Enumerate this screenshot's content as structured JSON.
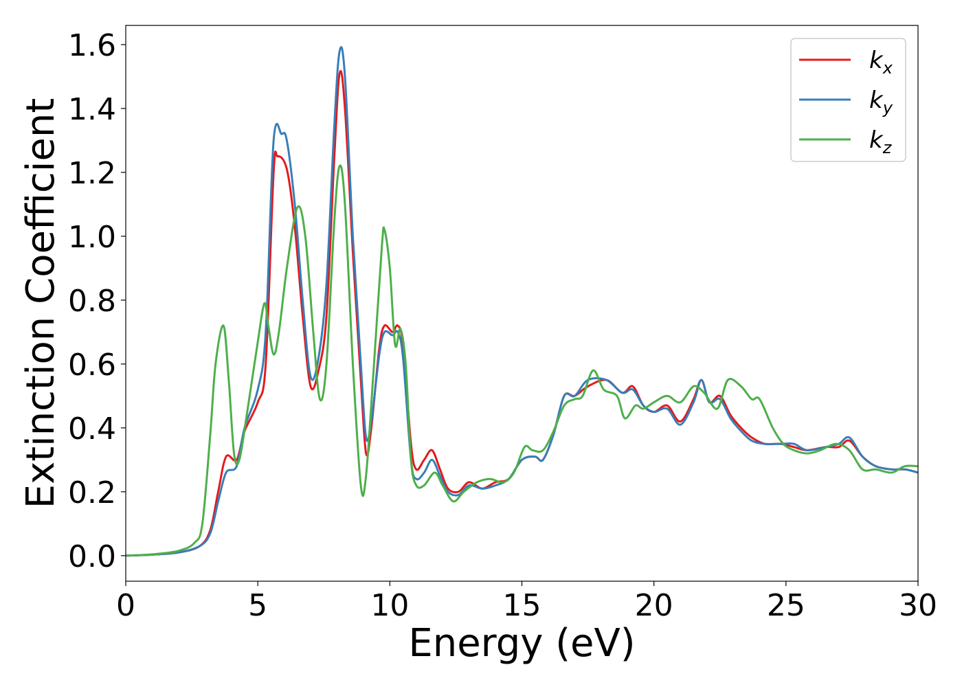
{
  "chart_data": {
    "type": "line",
    "xlabel": "Energy (eV)",
    "ylabel": "Extinction Coefficient",
    "xlim": [
      0,
      30
    ],
    "ylim": [
      -0.08,
      1.66
    ],
    "xticks": [
      "0",
      "5",
      "10",
      "15",
      "20",
      "25",
      "30"
    ],
    "yticks": [
      "0.0",
      "0.2",
      "0.4",
      "0.6",
      "0.8",
      "1.0",
      "1.2",
      "1.4",
      "1.6"
    ],
    "legend_position": "top-right",
    "grid": false,
    "series": [
      {
        "name": "k",
        "subscript": "x",
        "color": "#e41a1c",
        "points": [
          [
            0,
            0.0
          ],
          [
            1,
            0.003
          ],
          [
            2,
            0.01
          ],
          [
            2.8,
            0.03
          ],
          [
            3.2,
            0.08
          ],
          [
            3.5,
            0.2
          ],
          [
            3.8,
            0.31
          ],
          [
            4.2,
            0.3
          ],
          [
            4.5,
            0.39
          ],
          [
            5,
            0.48
          ],
          [
            5.3,
            0.6
          ],
          [
            5.6,
            1.2
          ],
          [
            5.75,
            1.25
          ],
          [
            6.1,
            1.21
          ],
          [
            6.4,
            1.03
          ],
          [
            6.7,
            0.75
          ],
          [
            7,
            0.53
          ],
          [
            7.3,
            0.58
          ],
          [
            7.6,
            0.75
          ],
          [
            7.9,
            1.25
          ],
          [
            8.1,
            1.51
          ],
          [
            8.3,
            1.4
          ],
          [
            8.6,
            0.95
          ],
          [
            8.9,
            0.55
          ],
          [
            9.1,
            0.32
          ],
          [
            9.3,
            0.4
          ],
          [
            9.6,
            0.65
          ],
          [
            9.8,
            0.72
          ],
          [
            10.1,
            0.7
          ],
          [
            10.3,
            0.72
          ],
          [
            10.5,
            0.66
          ],
          [
            10.8,
            0.35
          ],
          [
            11,
            0.27
          ],
          [
            11.3,
            0.3
          ],
          [
            11.6,
            0.33
          ],
          [
            11.9,
            0.27
          ],
          [
            12.2,
            0.21
          ],
          [
            12.6,
            0.2
          ],
          [
            13,
            0.23
          ],
          [
            13.5,
            0.21
          ],
          [
            14,
            0.23
          ],
          [
            14.5,
            0.24
          ],
          [
            15,
            0.3
          ],
          [
            15.5,
            0.31
          ],
          [
            15.8,
            0.3
          ],
          [
            16.2,
            0.38
          ],
          [
            16.6,
            0.5
          ],
          [
            17,
            0.5
          ],
          [
            17.5,
            0.53
          ],
          [
            18.2,
            0.55
          ],
          [
            18.8,
            0.51
          ],
          [
            19.2,
            0.53
          ],
          [
            19.6,
            0.47
          ],
          [
            20,
            0.45
          ],
          [
            20.5,
            0.47
          ],
          [
            21,
            0.42
          ],
          [
            21.5,
            0.49
          ],
          [
            21.8,
            0.55
          ],
          [
            22.1,
            0.48
          ],
          [
            22.5,
            0.5
          ],
          [
            22.9,
            0.44
          ],
          [
            23.3,
            0.4
          ],
          [
            23.7,
            0.37
          ],
          [
            24.2,
            0.35
          ],
          [
            24.8,
            0.35
          ],
          [
            25.3,
            0.34
          ],
          [
            25.8,
            0.33
          ],
          [
            26.5,
            0.34
          ],
          [
            27,
            0.34
          ],
          [
            27.4,
            0.36
          ],
          [
            27.9,
            0.31
          ],
          [
            28.4,
            0.28
          ],
          [
            29,
            0.27
          ],
          [
            29.5,
            0.27
          ],
          [
            30,
            0.26
          ]
        ]
      },
      {
        "name": "k",
        "subscript": "y",
        "color": "#377eb8",
        "points": [
          [
            0,
            0.0
          ],
          [
            1,
            0.003
          ],
          [
            2,
            0.01
          ],
          [
            2.8,
            0.03
          ],
          [
            3.2,
            0.07
          ],
          [
            3.5,
            0.17
          ],
          [
            3.8,
            0.26
          ],
          [
            4.2,
            0.28
          ],
          [
            4.5,
            0.4
          ],
          [
            5,
            0.52
          ],
          [
            5.3,
            0.7
          ],
          [
            5.6,
            1.3
          ],
          [
            5.9,
            1.32
          ],
          [
            6.1,
            1.3
          ],
          [
            6.4,
            1.1
          ],
          [
            6.7,
            0.8
          ],
          [
            7,
            0.56
          ],
          [
            7.3,
            0.62
          ],
          [
            7.6,
            0.85
          ],
          [
            7.9,
            1.35
          ],
          [
            8.1,
            1.58
          ],
          [
            8.3,
            1.5
          ],
          [
            8.6,
            1.0
          ],
          [
            8.9,
            0.6
          ],
          [
            9.1,
            0.37
          ],
          [
            9.3,
            0.42
          ],
          [
            9.6,
            0.63
          ],
          [
            9.8,
            0.7
          ],
          [
            10.1,
            0.69
          ],
          [
            10.3,
            0.7
          ],
          [
            10.5,
            0.62
          ],
          [
            10.8,
            0.3
          ],
          [
            11,
            0.24
          ],
          [
            11.3,
            0.26
          ],
          [
            11.6,
            0.3
          ],
          [
            11.9,
            0.25
          ],
          [
            12.2,
            0.2
          ],
          [
            12.6,
            0.19
          ],
          [
            13,
            0.22
          ],
          [
            13.5,
            0.21
          ],
          [
            14,
            0.22
          ],
          [
            14.5,
            0.24
          ],
          [
            15,
            0.3
          ],
          [
            15.5,
            0.31
          ],
          [
            15.8,
            0.3
          ],
          [
            16.2,
            0.38
          ],
          [
            16.6,
            0.5
          ],
          [
            17,
            0.5
          ],
          [
            17.5,
            0.55
          ],
          [
            18.2,
            0.55
          ],
          [
            18.8,
            0.51
          ],
          [
            19.2,
            0.52
          ],
          [
            19.6,
            0.47
          ],
          [
            20,
            0.45
          ],
          [
            20.5,
            0.46
          ],
          [
            21,
            0.41
          ],
          [
            21.5,
            0.48
          ],
          [
            21.8,
            0.55
          ],
          [
            22.1,
            0.48
          ],
          [
            22.5,
            0.49
          ],
          [
            22.9,
            0.43
          ],
          [
            23.3,
            0.39
          ],
          [
            23.7,
            0.36
          ],
          [
            24.2,
            0.35
          ],
          [
            24.8,
            0.35
          ],
          [
            25.3,
            0.35
          ],
          [
            25.8,
            0.33
          ],
          [
            26.5,
            0.34
          ],
          [
            27,
            0.35
          ],
          [
            27.4,
            0.37
          ],
          [
            27.9,
            0.31
          ],
          [
            28.4,
            0.28
          ],
          [
            29,
            0.27
          ],
          [
            29.5,
            0.27
          ],
          [
            30,
            0.26
          ]
        ]
      },
      {
        "name": "k",
        "subscript": "z",
        "color": "#4daf4a",
        "points": [
          [
            0,
            0.0
          ],
          [
            1,
            0.004
          ],
          [
            2,
            0.015
          ],
          [
            2.6,
            0.04
          ],
          [
            2.9,
            0.1
          ],
          [
            3.2,
            0.38
          ],
          [
            3.4,
            0.6
          ],
          [
            3.7,
            0.72
          ],
          [
            3.9,
            0.55
          ],
          [
            4.1,
            0.32
          ],
          [
            4.3,
            0.3
          ],
          [
            4.6,
            0.45
          ],
          [
            5,
            0.67
          ],
          [
            5.25,
            0.79
          ],
          [
            5.4,
            0.72
          ],
          [
            5.6,
            0.63
          ],
          [
            5.8,
            0.7
          ],
          [
            6.1,
            0.9
          ],
          [
            6.5,
            1.09
          ],
          [
            6.8,
            1.0
          ],
          [
            7.1,
            0.7
          ],
          [
            7.35,
            0.49
          ],
          [
            7.6,
            0.6
          ],
          [
            7.9,
            1.05
          ],
          [
            8.1,
            1.22
          ],
          [
            8.3,
            1.1
          ],
          [
            8.6,
            0.6
          ],
          [
            8.9,
            0.22
          ],
          [
            9.1,
            0.25
          ],
          [
            9.4,
            0.6
          ],
          [
            9.7,
            0.97
          ],
          [
            9.8,
            1.02
          ],
          [
            10.0,
            0.9
          ],
          [
            10.2,
            0.66
          ],
          [
            10.4,
            0.71
          ],
          [
            10.6,
            0.6
          ],
          [
            10.8,
            0.3
          ],
          [
            11,
            0.22
          ],
          [
            11.3,
            0.22
          ],
          [
            11.7,
            0.26
          ],
          [
            12,
            0.22
          ],
          [
            12.4,
            0.17
          ],
          [
            12.8,
            0.2
          ],
          [
            13.3,
            0.23
          ],
          [
            13.8,
            0.24
          ],
          [
            14.3,
            0.23
          ],
          [
            14.7,
            0.26
          ],
          [
            15.1,
            0.34
          ],
          [
            15.4,
            0.33
          ],
          [
            15.8,
            0.33
          ],
          [
            16.2,
            0.39
          ],
          [
            16.6,
            0.47
          ],
          [
            17,
            0.49
          ],
          [
            17.3,
            0.5
          ],
          [
            17.7,
            0.58
          ],
          [
            18.1,
            0.52
          ],
          [
            18.6,
            0.5
          ],
          [
            18.9,
            0.43
          ],
          [
            19.3,
            0.47
          ],
          [
            19.6,
            0.46
          ],
          [
            20,
            0.48
          ],
          [
            20.5,
            0.5
          ],
          [
            21,
            0.48
          ],
          [
            21.5,
            0.53
          ],
          [
            21.9,
            0.51
          ],
          [
            22.4,
            0.46
          ],
          [
            22.8,
            0.55
          ],
          [
            23.3,
            0.53
          ],
          [
            23.7,
            0.49
          ],
          [
            24,
            0.49
          ],
          [
            24.5,
            0.4
          ],
          [
            24.9,
            0.35
          ],
          [
            25.3,
            0.33
          ],
          [
            25.8,
            0.32
          ],
          [
            26.3,
            0.33
          ],
          [
            26.9,
            0.35
          ],
          [
            27.4,
            0.33
          ],
          [
            27.9,
            0.27
          ],
          [
            28.4,
            0.27
          ],
          [
            29,
            0.26
          ],
          [
            29.5,
            0.28
          ],
          [
            30,
            0.28
          ]
        ]
      }
    ]
  }
}
